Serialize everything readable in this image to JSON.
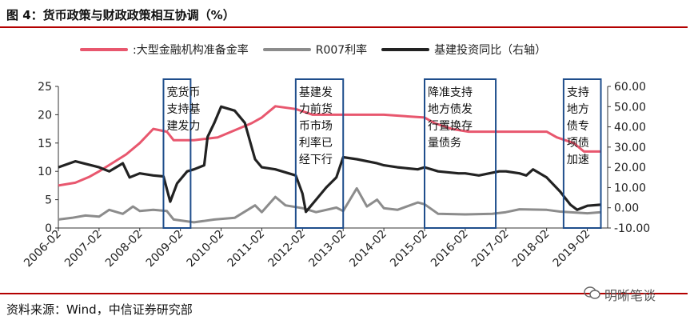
{
  "title": "图 4：货币政策与财政政策相互协调（%）",
  "source": "资料来源：Wind，中信证券研究部",
  "watermark": "明晰笔谈",
  "colors": {
    "rrr": "#e8576e",
    "r007": "#8c8c8c",
    "infra": "#222222",
    "box": "#1f4e8c",
    "rule": "#b30000"
  },
  "chart_data": {
    "type": "line",
    "x_ticks": [
      "2006-02",
      "2007-02",
      "2008-02",
      "2009-02",
      "2010-02",
      "2011-02",
      "2012-02",
      "2013-02",
      "2014-02",
      "2015-02",
      "2016-02",
      "2017-02",
      "2018-02",
      "2019-02"
    ],
    "ylim_left": [
      0,
      25
    ],
    "yticks_left": [
      "0",
      "5",
      "10",
      "15",
      "20",
      "25"
    ],
    "ylim_right": [
      -10,
      60
    ],
    "yticks_right": [
      "-10.00",
      "0.00",
      "10.00",
      "20.00",
      "30.00",
      "40.00",
      "50.00",
      "60.00"
    ],
    "series": [
      {
        "name": ":大型金融机构准备金率",
        "axis": "left",
        "points": [
          [
            "2006-02",
            7.5
          ],
          [
            "2006-07",
            8
          ],
          [
            "2006-11",
            9
          ],
          [
            "2007-02",
            10
          ],
          [
            "2007-06",
            11.5
          ],
          [
            "2007-10",
            13
          ],
          [
            "2008-02",
            15
          ],
          [
            "2008-06",
            17.5
          ],
          [
            "2008-10",
            17
          ],
          [
            "2008-12",
            15.5
          ],
          [
            "2009-06",
            15.5
          ],
          [
            "2010-01",
            16
          ],
          [
            "2010-05",
            17
          ],
          [
            "2010-11",
            18.5
          ],
          [
            "2011-02",
            19.5
          ],
          [
            "2011-06",
            21.5
          ],
          [
            "2011-12",
            21
          ],
          [
            "2012-05",
            20
          ],
          [
            "2013-02",
            20
          ],
          [
            "2014-02",
            20
          ],
          [
            "2015-02",
            19.5
          ],
          [
            "2015-05",
            18.5
          ],
          [
            "2015-10",
            17.5
          ],
          [
            "2016-03",
            17
          ],
          [
            "2017-02",
            17
          ],
          [
            "2018-02",
            17
          ],
          [
            "2018-05",
            16
          ],
          [
            "2018-10",
            15
          ],
          [
            "2019-01",
            13.5
          ],
          [
            "2019-06",
            13.5
          ]
        ]
      },
      {
        "name": "R007利率",
        "axis": "left",
        "points": [
          [
            "2006-02",
            1.5
          ],
          [
            "2006-06",
            1.8
          ],
          [
            "2006-10",
            2.2
          ],
          [
            "2007-02",
            2.0
          ],
          [
            "2007-05",
            3.2
          ],
          [
            "2007-09",
            2.5
          ],
          [
            "2007-12",
            3.8
          ],
          [
            "2008-02",
            3.0
          ],
          [
            "2008-06",
            3.2
          ],
          [
            "2008-10",
            3.0
          ],
          [
            "2008-12",
            1.5
          ],
          [
            "2009-06",
            1.0
          ],
          [
            "2009-12",
            1.5
          ],
          [
            "2010-06",
            1.8
          ],
          [
            "2010-12",
            4.0
          ],
          [
            "2011-02",
            2.8
          ],
          [
            "2011-06",
            5.5
          ],
          [
            "2011-09",
            4.0
          ],
          [
            "2012-02",
            3.5
          ],
          [
            "2012-06",
            2.8
          ],
          [
            "2012-12",
            3.6
          ],
          [
            "2013-02",
            3.0
          ],
          [
            "2013-06",
            7.0
          ],
          [
            "2013-09",
            3.8
          ],
          [
            "2013-12",
            5.0
          ],
          [
            "2014-02",
            3.5
          ],
          [
            "2014-06",
            3.2
          ],
          [
            "2014-12",
            4.5
          ],
          [
            "2015-02",
            4.2
          ],
          [
            "2015-06",
            2.5
          ],
          [
            "2016-02",
            2.4
          ],
          [
            "2016-10",
            2.5
          ],
          [
            "2017-02",
            2.8
          ],
          [
            "2017-06",
            3.3
          ],
          [
            "2018-02",
            3.2
          ],
          [
            "2018-06",
            2.9
          ],
          [
            "2019-02",
            2.6
          ],
          [
            "2019-06",
            2.8
          ]
        ]
      },
      {
        "name": "基建投资同比（右轴）",
        "axis": "right",
        "points": [
          [
            "2006-02",
            20
          ],
          [
            "2006-07",
            23
          ],
          [
            "2007-02",
            20
          ],
          [
            "2007-05",
            18
          ],
          [
            "2007-09",
            22
          ],
          [
            "2007-11",
            15
          ],
          [
            "2008-02",
            17
          ],
          [
            "2008-06",
            16
          ],
          [
            "2008-09",
            15.5
          ],
          [
            "2008-11",
            3
          ],
          [
            "2009-01",
            12
          ],
          [
            "2009-04",
            18
          ],
          [
            "2009-06",
            19
          ],
          [
            "2009-09",
            21
          ],
          [
            "2009-10",
            35
          ],
          [
            "2009-12",
            42
          ],
          [
            "2010-02",
            50
          ],
          [
            "2010-06",
            48
          ],
          [
            "2010-09",
            42
          ],
          [
            "2010-12",
            24
          ],
          [
            "2011-02",
            20
          ],
          [
            "2011-06",
            19
          ],
          [
            "2011-12",
            16
          ],
          [
            "2012-02",
            7
          ],
          [
            "2012-03",
            -2
          ],
          [
            "2012-06",
            4
          ],
          [
            "2012-09",
            10
          ],
          [
            "2012-12",
            15
          ],
          [
            "2013-02",
            25
          ],
          [
            "2013-06",
            24
          ],
          [
            "2013-12",
            22
          ],
          [
            "2014-02",
            21
          ],
          [
            "2014-06",
            20
          ],
          [
            "2014-12",
            19
          ],
          [
            "2015-02",
            20
          ],
          [
            "2015-06",
            18
          ],
          [
            "2015-12",
            17
          ],
          [
            "2016-02",
            17
          ],
          [
            "2016-06",
            16
          ],
          [
            "2016-12",
            18
          ],
          [
            "2017-02",
            18
          ],
          [
            "2017-06",
            17
          ],
          [
            "2017-08",
            16
          ],
          [
            "2017-10",
            19
          ],
          [
            "2017-12",
            17
          ],
          [
            "2018-02",
            15
          ],
          [
            "2018-06",
            8
          ],
          [
            "2018-09",
            1.5
          ],
          [
            "2018-11",
            -1
          ],
          [
            "2019-02",
            1
          ],
          [
            "2019-06",
            1.5
          ]
        ]
      }
    ],
    "annotations": [
      {
        "lines": [
          "宽货币",
          "支持基",
          "建发力"
        ],
        "from": "2008-09",
        "to": "2009-05"
      },
      {
        "lines": [
          "基建发",
          "力前货",
          "币市场",
          "利率已",
          "经下行"
        ],
        "from": "2011-12",
        "to": "2013-02"
      },
      {
        "lines": [
          "降准支持",
          "地方债发",
          "行置换存",
          "量债务"
        ],
        "from": "2015-02",
        "to": "2016-11"
      },
      {
        "lines": [
          "支持",
          "地方",
          "债专",
          "项债",
          "加速"
        ],
        "from": "2018-07",
        "to": "2019-06"
      }
    ]
  }
}
